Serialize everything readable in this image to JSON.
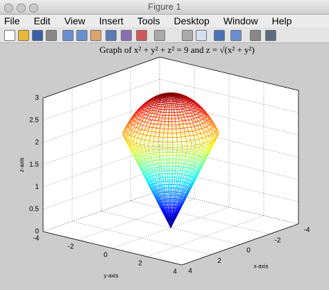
{
  "window": {
    "title": "Figure 1",
    "menu": [
      "File",
      "Edit",
      "View",
      "Insert",
      "Tools",
      "Desktop",
      "Window",
      "Help"
    ]
  },
  "chart_data": {
    "type": "mesh3d",
    "title": "Graph of x² + y² + z² = 9 and z = √(x² + y²)",
    "xlabel": "x-axis",
    "ylabel": "y-axis",
    "zlabel": "z-axis",
    "xlim": [
      -4,
      4
    ],
    "ylim": [
      -4,
      4
    ],
    "zlim": [
      0,
      3
    ],
    "xticks": [
      -4,
      -2,
      0,
      2,
      4
    ],
    "yticks": [
      -4,
      -2,
      0,
      2,
      4
    ],
    "zticks": [
      0,
      0.5,
      1,
      1.5,
      2,
      2.5,
      3
    ],
    "grid": true
  }
}
